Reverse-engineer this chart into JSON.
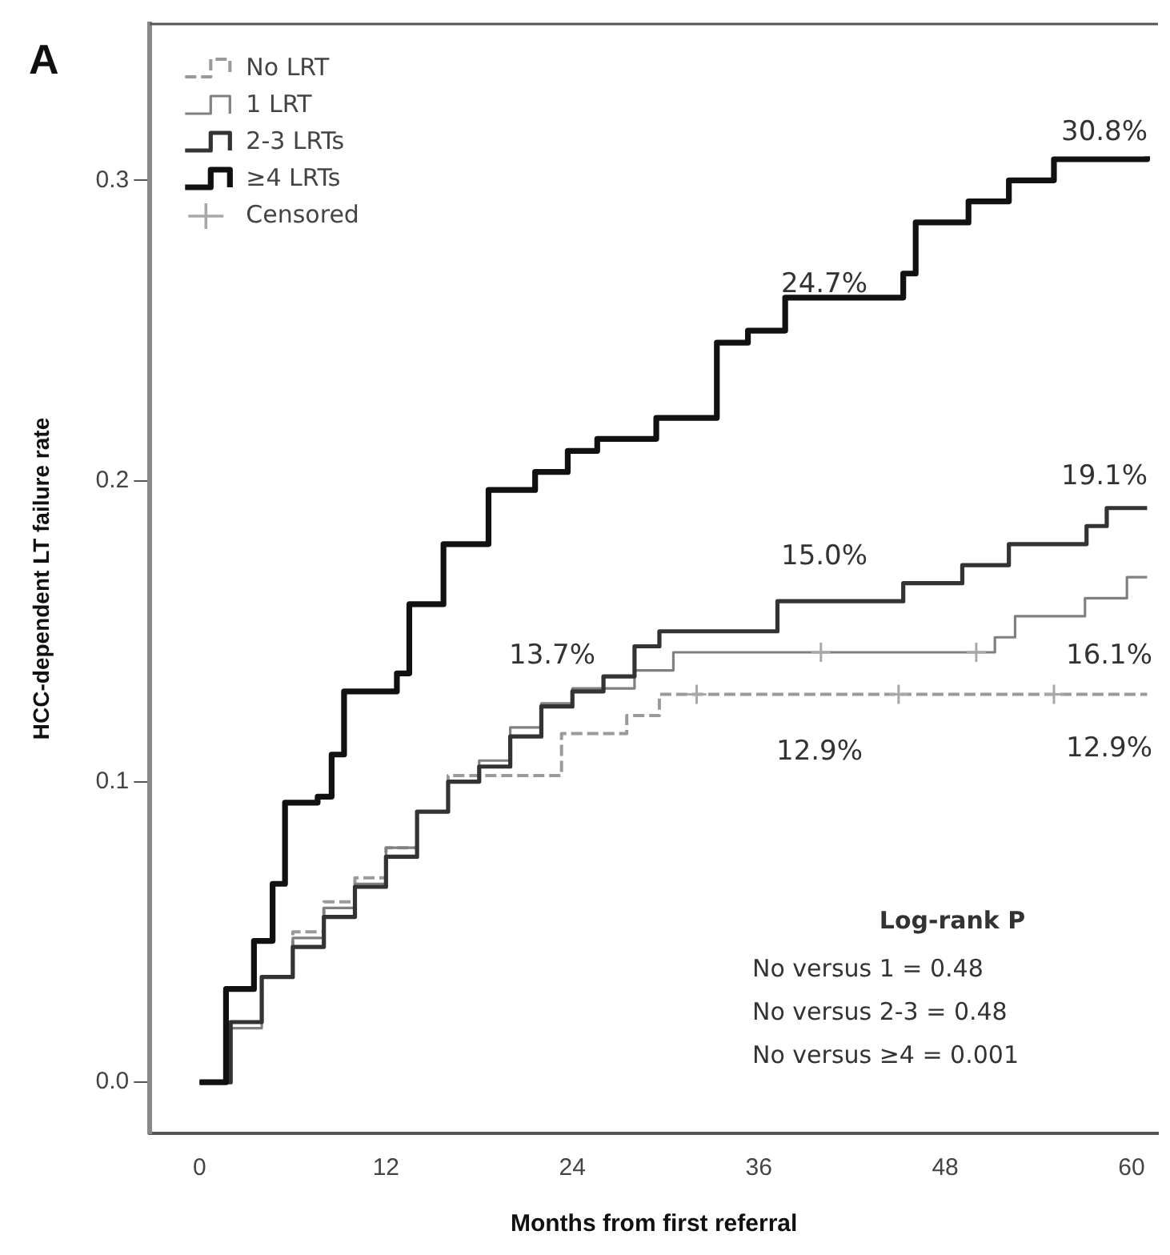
{
  "chart_data": {
    "type": "step",
    "title": "A",
    "xlabel": "Months from first referral",
    "ylabel": "HCC-dependent LT failure rate",
    "xlim": [
      -3.2,
      61.7
    ],
    "ylim": [
      -0.017,
      0.352
    ],
    "xticks": [
      0,
      12,
      24,
      36,
      48,
      60
    ],
    "yticks": [
      {
        "value": 0,
        "label": "0.0"
      },
      {
        "value": 0.1,
        "label": "0.1"
      },
      {
        "value": 0.2,
        "label": "0.2"
      },
      {
        "value": 0.3,
        "label": "0.3"
      }
    ],
    "legend": "top left",
    "grid": false,
    "series": [
      {
        "name": "No LRT",
        "color": "#9a9a9a",
        "line_style": "dashed",
        "x": [
          0,
          2,
          4,
          6,
          8,
          10,
          12,
          14,
          16,
          21.6,
          23.3,
          27.5,
          29.6,
          61
        ],
        "values": [
          0,
          0.02,
          0.035,
          0.05,
          0.06,
          0.068,
          0.078,
          0.09,
          0.102,
          0.102,
          0.116,
          0.122,
          0.129,
          0.129
        ]
      },
      {
        "name": "1 LRT",
        "color": "#808080",
        "line_style": "solid",
        "x": [
          0,
          2,
          4,
          6,
          8,
          10,
          12,
          14,
          16,
          18,
          20,
          22,
          24,
          28,
          30.5,
          51.2,
          52.5,
          57,
          59.7,
          61
        ],
        "values": [
          0,
          0.018,
          0.035,
          0.048,
          0.058,
          0.066,
          0.078,
          0.09,
          0.1,
          0.107,
          0.118,
          0.126,
          0.131,
          0.137,
          0.143,
          0.148,
          0.155,
          0.161,
          0.168,
          0.168
        ]
      },
      {
        "name": "2-3 LRTs",
        "color": "#333333",
        "line_style": "solid",
        "x": [
          0,
          2,
          4,
          6,
          8,
          10,
          12,
          14,
          16,
          18,
          20,
          22,
          24,
          26,
          28,
          29.6,
          37.2,
          45.3,
          49.1,
          52.1,
          57.1,
          58.4,
          61
        ],
        "values": [
          0,
          0.02,
          0.035,
          0.045,
          0.055,
          0.065,
          0.075,
          0.09,
          0.1,
          0.105,
          0.115,
          0.125,
          0.13,
          0.135,
          0.145,
          0.15,
          0.16,
          0.166,
          0.172,
          0.179,
          0.185,
          0.191,
          0.191
        ]
      },
      {
        "name": "≥4 LRTs",
        "color": "#111111",
        "line_style": "solid",
        "x": [
          0,
          1.7,
          3.5,
          4.7,
          5.5,
          7.6,
          8.5,
          9.3,
          12.7,
          13.5,
          15.7,
          18.6,
          21.6,
          23.7,
          25.6,
          29.4,
          33.3,
          35.3,
          37.7,
          45.3,
          46.1,
          49.5,
          52.1,
          55,
          61
        ],
        "values": [
          0,
          0.031,
          0.047,
          0.066,
          0.093,
          0.095,
          0.109,
          0.13,
          0.136,
          0.159,
          0.179,
          0.197,
          0.203,
          0.21,
          0.214,
          0.221,
          0.246,
          0.25,
          0.261,
          0.269,
          0.286,
          0.293,
          0.3,
          0.307,
          0.308
        ]
      },
      {
        "name": "Censored",
        "type": "scatter",
        "marker": "cross",
        "color": "#a8a8a8",
        "x": [
          32,
          45,
          55,
          40,
          50
        ],
        "values": [
          0.129,
          0.129,
          0.129,
          0.143,
          0.143
        ]
      }
    ],
    "annotations": [
      "30.8%",
      "24.7%",
      "19.1%",
      "15.0%",
      "13.7%",
      "16.1%",
      "12.9%",
      "12.9%",
      "Log-rank P",
      "No versus 1 = 0.48",
      "No versus 2-3 = 0.48",
      "No versus ≥4 = 0.001"
    ]
  }
}
